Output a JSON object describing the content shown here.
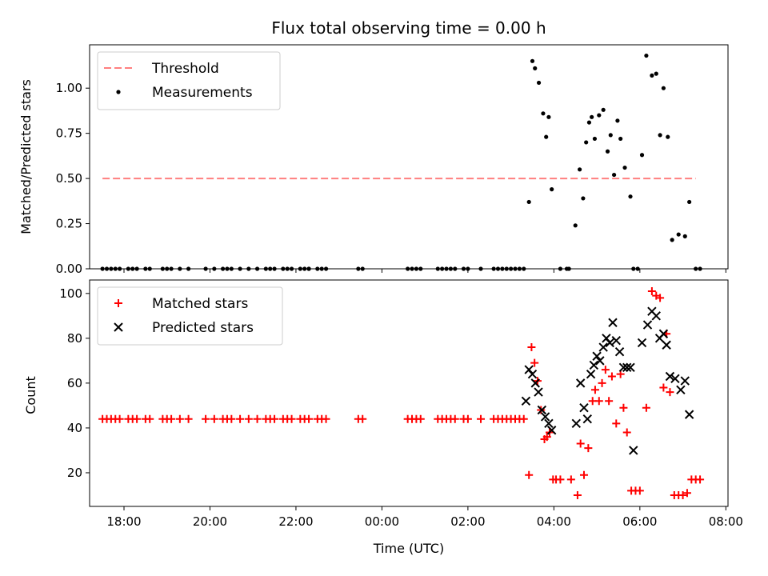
{
  "title": "Flux total observing time = 0.00 h",
  "chart_data": [
    {
      "type": "scatter",
      "ylabel": "Matched/Predicted stars",
      "xlim": [
        -6.8,
        8.05
      ],
      "ylim": [
        0,
        1.24
      ],
      "yticks": [
        0.0,
        0.25,
        0.5,
        0.75,
        1.0
      ],
      "ytick_labels": [
        "0.00",
        "0.25",
        "0.50",
        "0.75",
        "1.00"
      ],
      "legend": "top-left",
      "threshold": {
        "name": "Threshold",
        "value": 0.5,
        "x_range": [
          -6.5,
          7.3
        ],
        "color": "#ff7f7f"
      },
      "series": [
        {
          "name": "Measurements",
          "color": "#000000",
          "x": [
            -6.5,
            -6.4,
            -6.3,
            -6.2,
            -6.1,
            -5.9,
            -5.8,
            -5.7,
            -5.5,
            -5.4,
            -5.1,
            -5.0,
            -4.9,
            -4.7,
            -4.5,
            -4.1,
            -3.9,
            -3.7,
            -3.6,
            -3.5,
            -3.3,
            -3.1,
            -2.9,
            -2.7,
            -2.6,
            -2.5,
            -2.3,
            -2.2,
            -2.1,
            -1.9,
            -1.8,
            -1.7,
            -1.5,
            -1.4,
            -1.3,
            -1.7,
            -0.55,
            -0.45,
            0.6,
            0.7,
            0.8,
            0.9,
            1.3,
            1.4,
            1.5,
            1.6,
            1.7,
            1.9,
            2.0,
            2.3,
            2.6,
            2.7,
            2.8,
            2.9,
            3.0,
            3.1,
            3.2,
            3.3,
            3.42,
            3.5,
            3.56,
            3.65,
            3.75,
            3.82,
            3.88,
            3.95,
            4.15,
            4.3,
            4.5,
            4.6,
            4.68,
            4.75,
            4.82,
            4.88,
            4.95,
            5.05,
            5.15,
            5.25,
            5.32,
            5.4,
            5.48,
            5.55,
            5.65,
            5.78,
            5.85,
            5.95,
            6.05,
            6.15,
            6.28,
            6.38,
            6.47,
            6.55,
            6.65,
            6.75,
            6.9,
            7.05,
            7.15,
            7.3,
            7.4,
            4.35
          ],
          "y": [
            0,
            0,
            0,
            0,
            0,
            0,
            0,
            0,
            0,
            0,
            0,
            0,
            0,
            0,
            0,
            0,
            0,
            0,
            0,
            0,
            0,
            0,
            0,
            0,
            0,
            0,
            0,
            0,
            0,
            0,
            0,
            0,
            0,
            0,
            0,
            0,
            0,
            0,
            0,
            0,
            0,
            0,
            0,
            0,
            0,
            0,
            0,
            0,
            0,
            0,
            0,
            0,
            0,
            0,
            0,
            0,
            0,
            0,
            0.37,
            1.15,
            1.11,
            1.03,
            0.86,
            0.73,
            0.84,
            0.44,
            0.0,
            0.0,
            0.24,
            0.55,
            0.39,
            0.7,
            0.81,
            0.84,
            0.72,
            0.85,
            0.88,
            0.65,
            0.74,
            0.52,
            0.82,
            0.72,
            0.56,
            0.4,
            0.0,
            0.0,
            0.63,
            1.18,
            1.07,
            1.08,
            0.74,
            1.0,
            0.73,
            0.16,
            0.19,
            0.18,
            0.37,
            0.0,
            0.0,
            0.0
          ]
        }
      ]
    },
    {
      "type": "scatter",
      "xlabel": "Time (UTC)",
      "ylabel": "Count",
      "xlim": [
        -6.8,
        8.05
      ],
      "ylim": [
        5,
        106
      ],
      "yticks": [
        20,
        40,
        60,
        80,
        100
      ],
      "xticks": [
        -6,
        -4,
        -2,
        0,
        2,
        4,
        6,
        8
      ],
      "xtick_labels": [
        "18:00",
        "20:00",
        "22:00",
        "00:00",
        "02:00",
        "04:00",
        "06:00",
        "08:00"
      ],
      "legend": "top-left",
      "series": [
        {
          "name": "Matched stars",
          "color": "#ff0000",
          "marker": "plus",
          "x": [
            -6.5,
            -6.4,
            -6.3,
            -6.2,
            -6.1,
            -5.9,
            -5.8,
            -5.7,
            -5.5,
            -5.4,
            -5.1,
            -5.0,
            -4.9,
            -4.7,
            -4.5,
            -4.1,
            -3.9,
            -3.7,
            -3.6,
            -3.5,
            -3.3,
            -3.1,
            -2.9,
            -2.7,
            -2.6,
            -2.5,
            -2.3,
            -2.2,
            -2.1,
            -1.9,
            -1.8,
            -1.7,
            -1.5,
            -1.4,
            -1.3,
            -0.55,
            -0.45,
            0.6,
            0.7,
            0.8,
            0.9,
            1.3,
            1.4,
            1.5,
            1.6,
            1.7,
            1.9,
            2.0,
            2.3,
            2.6,
            2.7,
            2.8,
            2.9,
            3.0,
            3.1,
            3.2,
            3.3,
            3.42,
            3.48,
            3.55,
            3.62,
            3.7,
            3.78,
            3.84,
            3.9,
            3.98,
            4.05,
            4.15,
            4.4,
            4.55,
            4.62,
            4.7,
            4.8,
            4.9,
            4.96,
            5.05,
            5.12,
            5.2,
            5.28,
            5.35,
            5.45,
            5.55,
            5.62,
            5.7,
            5.8,
            5.9,
            6.0,
            6.15,
            6.28,
            6.38,
            6.47,
            6.55,
            6.62,
            6.7,
            6.8,
            6.9,
            7.0,
            7.1,
            7.2,
            7.3,
            7.4
          ],
          "y": [
            44,
            44,
            44,
            44,
            44,
            44,
            44,
            44,
            44,
            44,
            44,
            44,
            44,
            44,
            44,
            44,
            44,
            44,
            44,
            44,
            44,
            44,
            44,
            44,
            44,
            44,
            44,
            44,
            44,
            44,
            44,
            44,
            44,
            44,
            44,
            44,
            44,
            44,
            44,
            44,
            44,
            44,
            44,
            44,
            44,
            44,
            44,
            44,
            44,
            44,
            44,
            44,
            44,
            44,
            44,
            44,
            44,
            19,
            76,
            69,
            61,
            48,
            35,
            36,
            38,
            17,
            17,
            17,
            17,
            10,
            33,
            19,
            31,
            52,
            57,
            52,
            60,
            66,
            52,
            63,
            42,
            64,
            49,
            38,
            12,
            12,
            12,
            49,
            101,
            99,
            98,
            58,
            82,
            56,
            10,
            10,
            10,
            11,
            17,
            17,
            17
          ]
        },
        {
          "name": "Predicted stars",
          "color": "#000000",
          "marker": "x",
          "x": [
            3.35,
            3.42,
            3.5,
            3.57,
            3.64,
            3.72,
            3.8,
            3.88,
            3.95,
            4.52,
            4.62,
            4.7,
            4.78,
            4.86,
            4.93,
            5.0,
            5.07,
            5.15,
            5.22,
            5.3,
            5.37,
            5.45,
            5.53,
            5.62,
            5.7,
            5.78,
            5.85,
            6.05,
            6.18,
            6.28,
            6.38,
            6.46,
            6.55,
            6.62,
            6.7,
            6.82,
            6.95,
            7.05,
            7.15
          ],
          "y": [
            52,
            66,
            64,
            60,
            56,
            48,
            45,
            42,
            39,
            42,
            60,
            49,
            44,
            64,
            68,
            72,
            70,
            76,
            80,
            78,
            87,
            79,
            74,
            67,
            67,
            67,
            30,
            78,
            86,
            92,
            90,
            80,
            82,
            77,
            63,
            62,
            57,
            61,
            46
          ]
        }
      ]
    }
  ]
}
